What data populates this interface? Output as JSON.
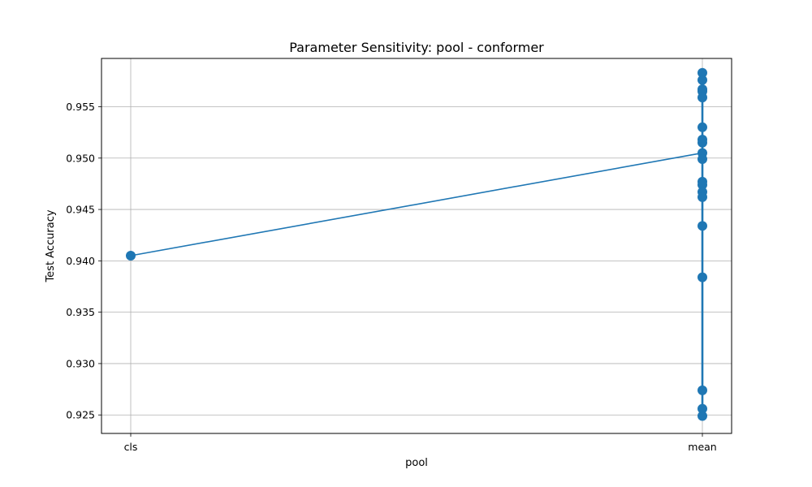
{
  "chart_data": {
    "type": "line",
    "title": "Parameter Sensitivity: pool - conformer",
    "xlabel": "pool",
    "ylabel": "Test Accuracy",
    "categories": [
      "cls",
      "mean"
    ],
    "ylim": [
      0.9232,
      0.9597
    ],
    "yticks": [
      0.925,
      0.93,
      0.935,
      0.94,
      0.945,
      0.95,
      0.955
    ],
    "ytick_labels": [
      "0.925",
      "0.930",
      "0.935",
      "0.940",
      "0.945",
      "0.950",
      "0.955"
    ],
    "grid": true,
    "series": [
      {
        "color": "#1f77b4",
        "points": [
          {
            "x": "cls",
            "y": 0.9405
          },
          {
            "x": "mean",
            "y": 0.9583
          },
          {
            "x": "mean",
            "y": 0.9576
          },
          {
            "x": "mean",
            "y": 0.9567
          },
          {
            "x": "mean",
            "y": 0.9565
          },
          {
            "x": "mean",
            "y": 0.9559
          },
          {
            "x": "mean",
            "y": 0.953
          },
          {
            "x": "mean",
            "y": 0.9518
          },
          {
            "x": "mean",
            "y": 0.9515
          },
          {
            "x": "mean",
            "y": 0.9505
          },
          {
            "x": "mean",
            "y": 0.9499
          },
          {
            "x": "mean",
            "y": 0.9477
          },
          {
            "x": "mean",
            "y": 0.9474
          },
          {
            "x": "mean",
            "y": 0.9467
          },
          {
            "x": "mean",
            "y": 0.9462
          },
          {
            "x": "mean",
            "y": 0.9434
          },
          {
            "x": "mean",
            "y": 0.9384
          },
          {
            "x": "mean",
            "y": 0.9274
          },
          {
            "x": "mean",
            "y": 0.9256
          },
          {
            "x": "mean",
            "y": 0.9249
          }
        ],
        "summary_line": [
          {
            "x": "cls",
            "y": 0.9405
          },
          {
            "x": "mean",
            "y": 0.9505
          }
        ]
      }
    ]
  }
}
